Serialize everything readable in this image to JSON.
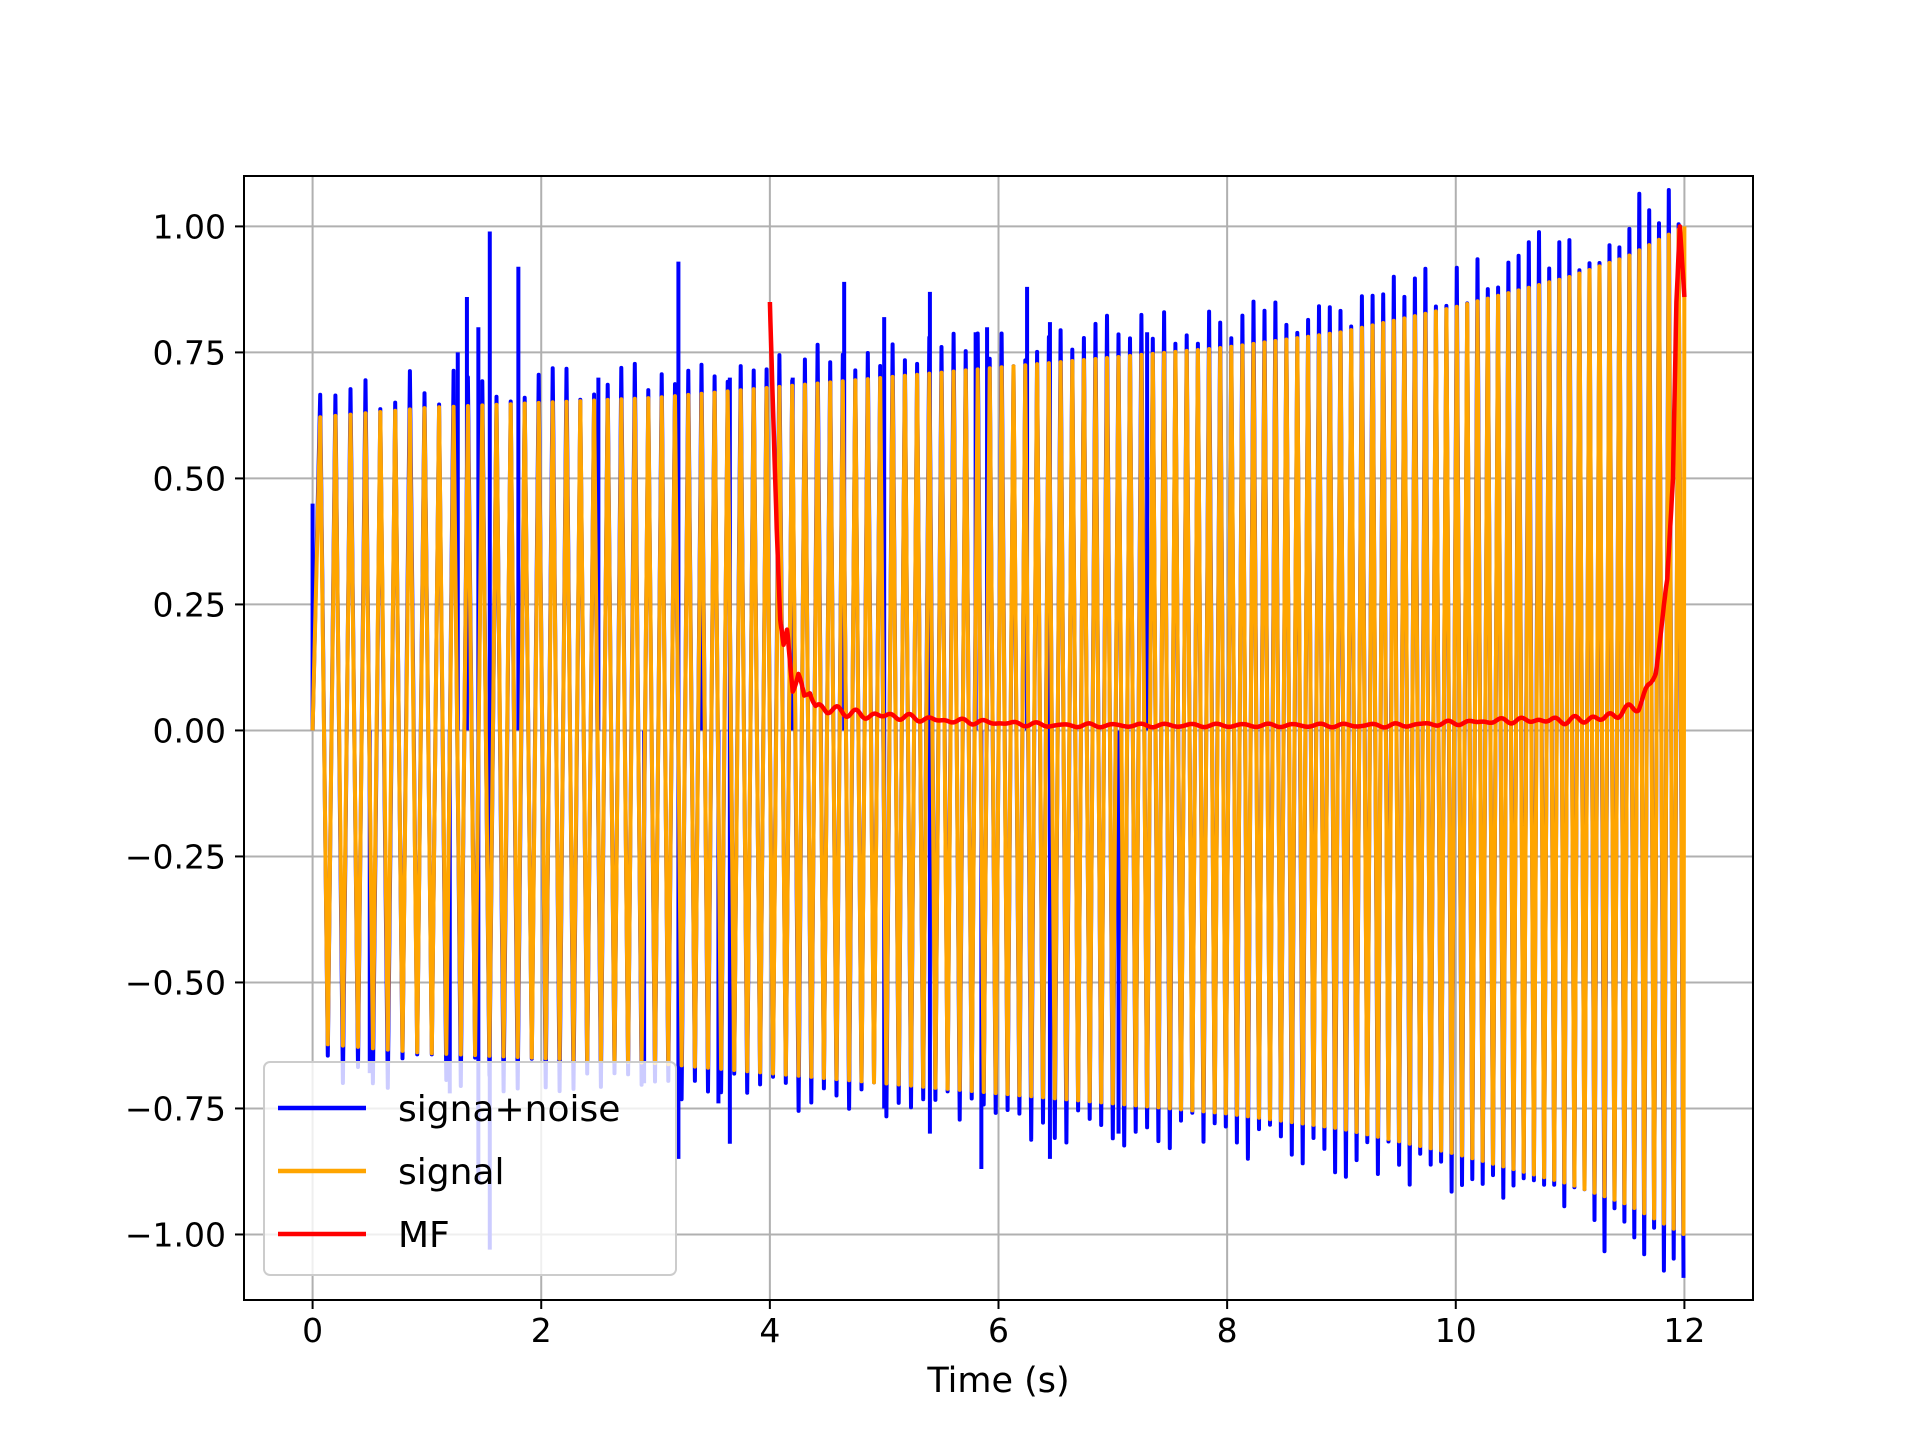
{
  "chart_data": {
    "type": "line",
    "title": "",
    "xlabel": "Time (s)",
    "ylabel": "",
    "xlim": [
      -0.6,
      12.6
    ],
    "ylim": [
      -1.13,
      1.1
    ],
    "xticks": [
      0,
      2,
      4,
      6,
      8,
      10,
      12
    ],
    "xtick_labels": [
      "0",
      "2",
      "4",
      "6",
      "8",
      "10",
      "12"
    ],
    "yticks": [
      1.0,
      0.75,
      0.5,
      0.25,
      0.0,
      -0.25,
      -0.5,
      -0.75,
      -1.0
    ],
    "ytick_labels": [
      "1.00",
      "0.75",
      "0.50",
      "0.25",
      "0.00",
      "−0.25",
      "−0.50",
      "−0.75",
      "−1.00"
    ],
    "grid": true,
    "legend_position": "lower-left",
    "series": [
      {
        "name": "signa+noise",
        "color": "#0000ff",
        "style": "noisy-chirp",
        "x_range": [
          0,
          12
        ],
        "spikes_up": [
          [
            0.0,
            0.45
          ],
          [
            1.27,
            0.75
          ],
          [
            1.35,
            0.86
          ],
          [
            1.45,
            0.8
          ],
          [
            1.55,
            0.99
          ],
          [
            1.8,
            0.92
          ],
          [
            2.5,
            0.7
          ],
          [
            3.2,
            0.93
          ],
          [
            3.4,
            0.67
          ],
          [
            3.65,
            0.7
          ],
          [
            4.2,
            0.7
          ],
          [
            4.65,
            0.89
          ],
          [
            5.0,
            0.82
          ],
          [
            5.4,
            0.87
          ],
          [
            5.8,
            0.79
          ],
          [
            5.9,
            0.8
          ],
          [
            6.25,
            0.88
          ],
          [
            6.45,
            0.81
          ],
          [
            7.3,
            0.79
          ]
        ],
        "spikes_down": [
          [
            0.5,
            -0.68
          ],
          [
            1.2,
            -0.72
          ],
          [
            1.45,
            -0.9
          ],
          [
            1.55,
            -1.03
          ],
          [
            2.9,
            -0.7
          ],
          [
            3.2,
            -0.85
          ],
          [
            3.55,
            -0.74
          ],
          [
            3.65,
            -0.82
          ],
          [
            5.0,
            -0.75
          ],
          [
            5.4,
            -0.8
          ],
          [
            5.85,
            -0.87
          ],
          [
            6.45,
            -0.85
          ],
          [
            7.05,
            -0.8
          ]
        ]
      },
      {
        "name": "signal",
        "color": "#ffa500",
        "style": "chirp",
        "x_range": [
          0,
          12
        ],
        "envelope_x": [
          0,
          1,
          2,
          3,
          4,
          5,
          6,
          7,
          8,
          9,
          10,
          11,
          11.5,
          12
        ],
        "envelope_y": [
          0.62,
          0.64,
          0.65,
          0.66,
          0.68,
          0.7,
          0.72,
          0.74,
          0.76,
          0.79,
          0.84,
          0.9,
          0.94,
          1.0
        ]
      },
      {
        "name": "MF",
        "color": "#ff0000",
        "style": "line",
        "x": [
          4.0,
          4.03,
          4.06,
          4.09,
          4.12,
          4.15,
          4.2,
          4.25,
          4.3,
          4.35,
          4.4,
          4.5,
          4.6,
          4.8,
          5.0,
          5.5,
          6.0,
          6.5,
          7.0,
          7.5,
          8.0,
          8.5,
          9.0,
          9.5,
          10.0,
          10.5,
          11.0,
          11.3,
          11.5,
          11.6,
          11.7,
          11.75,
          11.8,
          11.85,
          11.9,
          11.93,
          11.96,
          12.0
        ],
        "y": [
          0.85,
          0.62,
          0.4,
          0.22,
          0.17,
          0.2,
          0.09,
          0.11,
          0.06,
          0.08,
          0.05,
          0.04,
          0.04,
          0.03,
          0.03,
          0.02,
          0.015,
          0.01,
          0.01,
          0.01,
          0.01,
          0.01,
          0.01,
          0.01,
          0.015,
          0.02,
          0.02,
          0.025,
          0.04,
          0.05,
          0.09,
          0.12,
          0.2,
          0.3,
          0.5,
          0.85,
          1.0,
          0.86
        ]
      }
    ]
  }
}
